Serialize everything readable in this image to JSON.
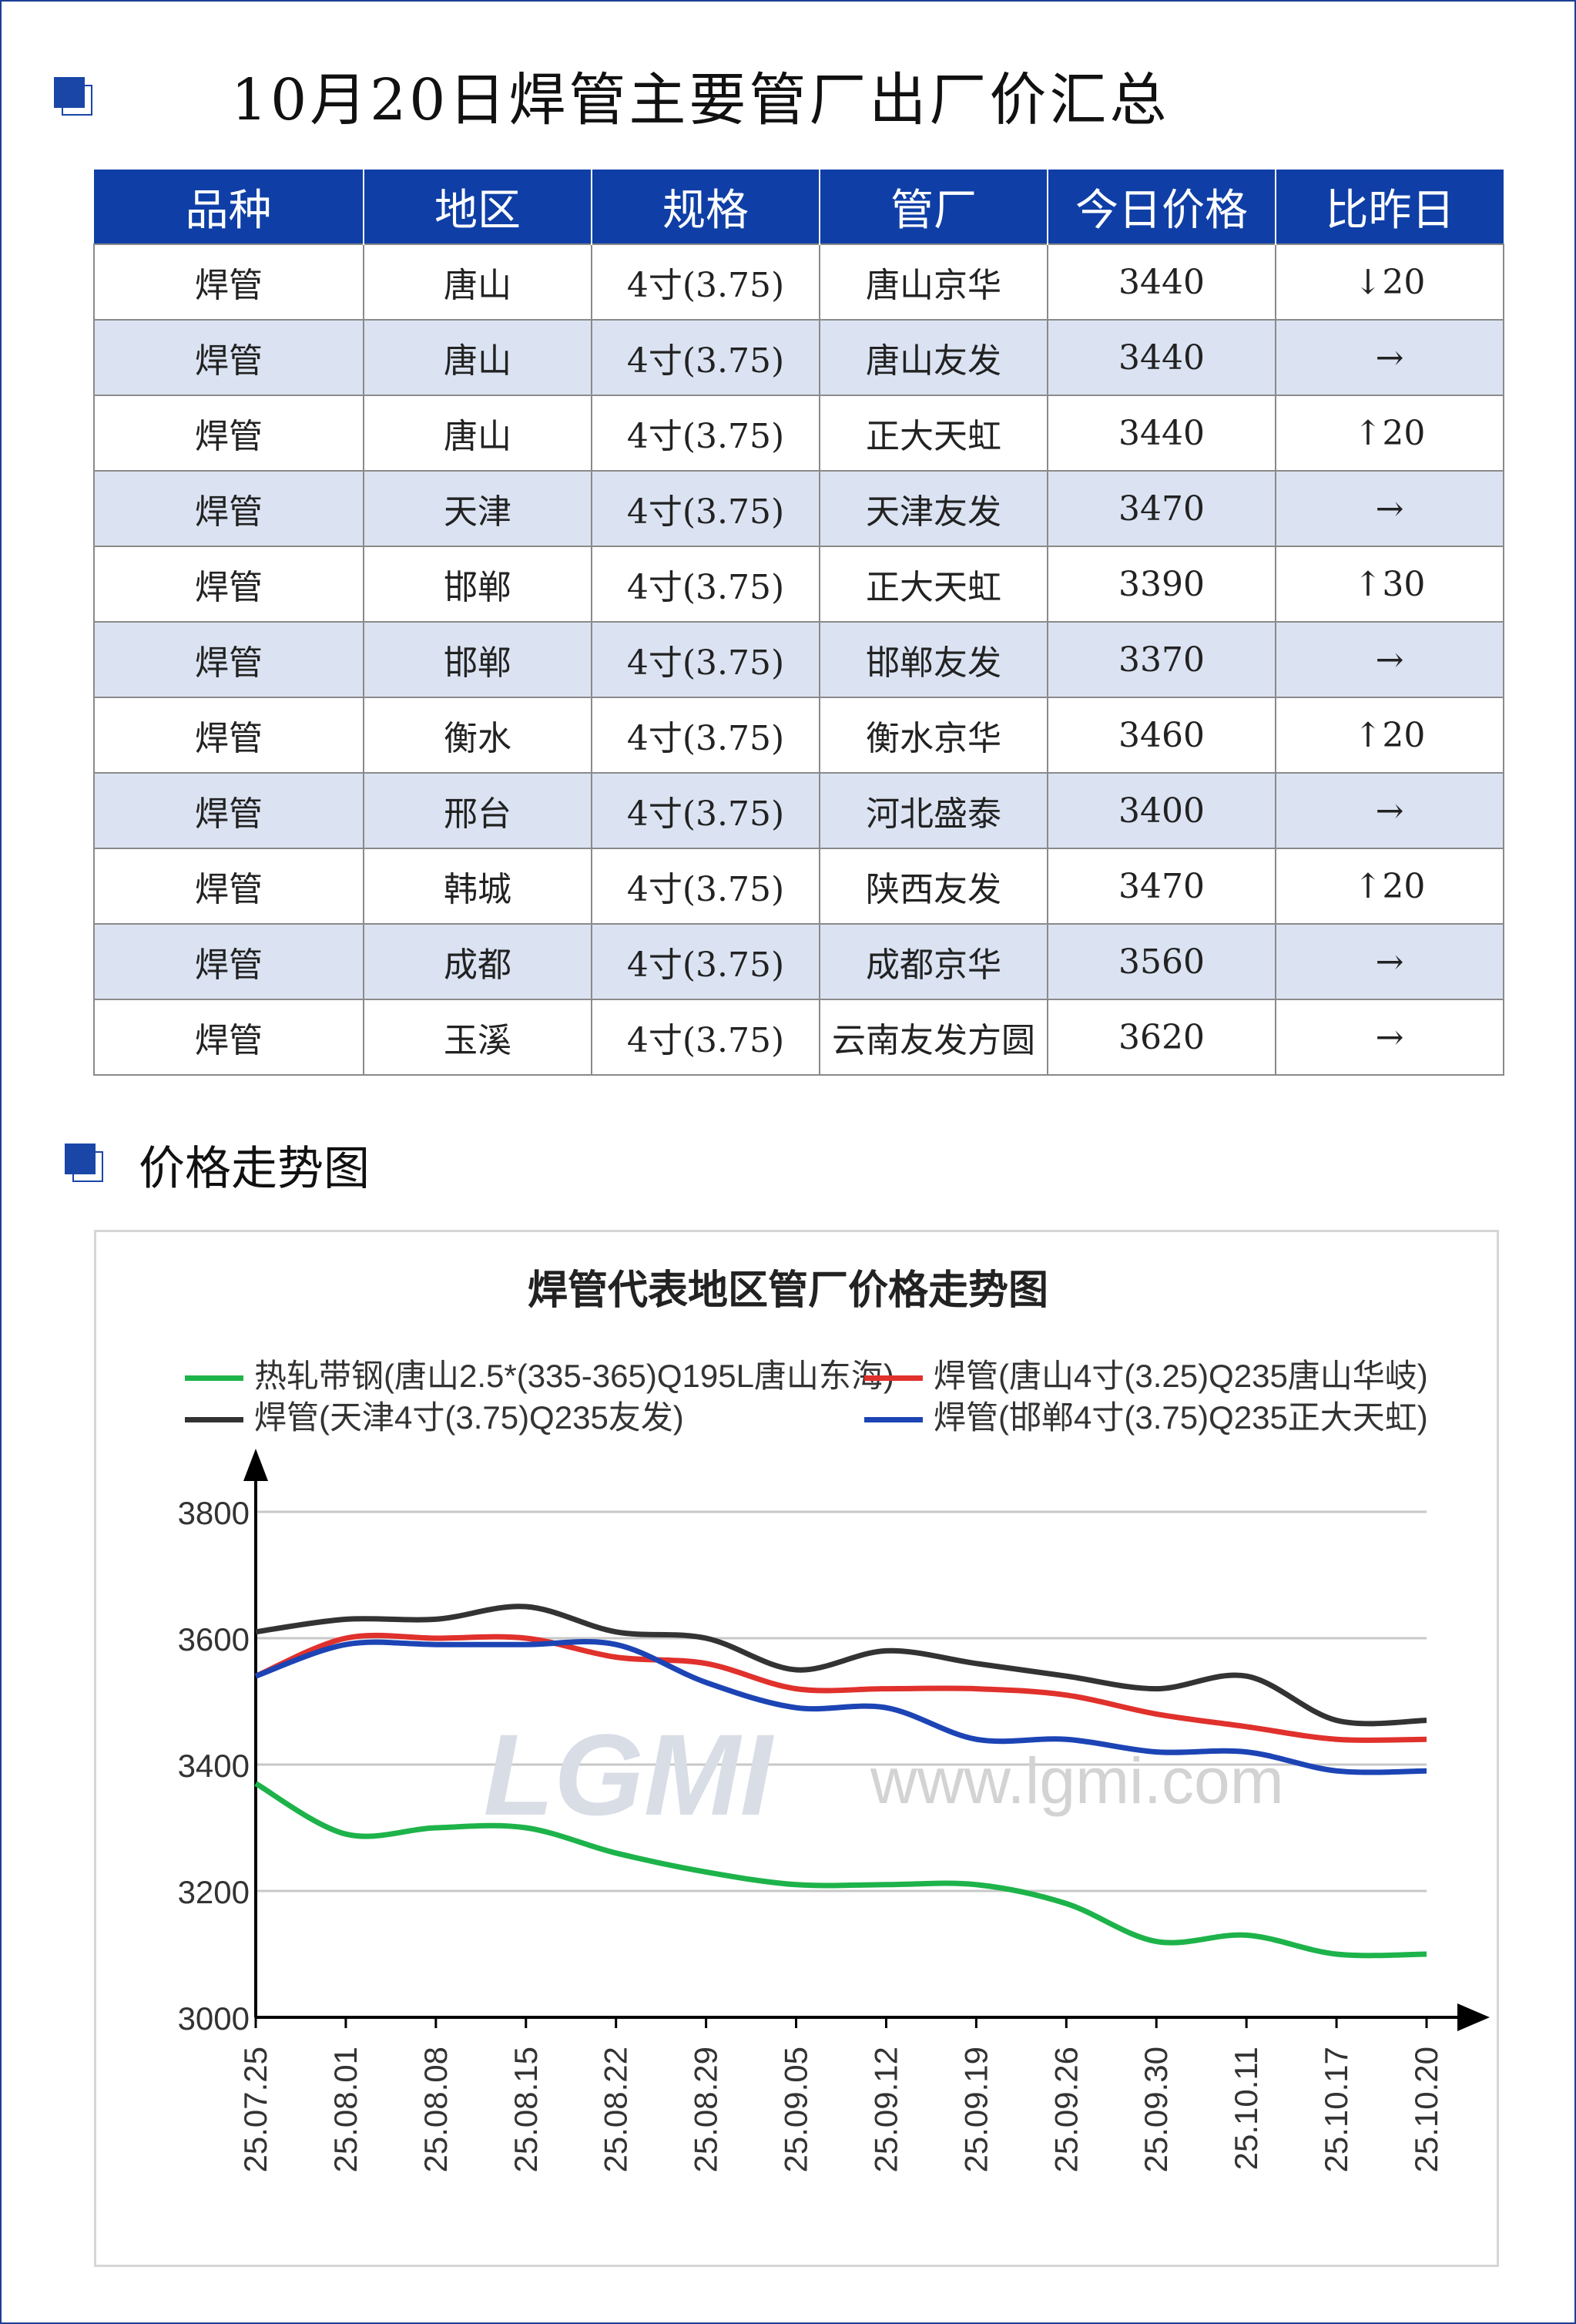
{
  "header": {
    "title": "10月20日焊管主要管厂出厂价汇总"
  },
  "table": {
    "columns": [
      "品种",
      "地区",
      "规格",
      "管厂",
      "今日价格",
      "比昨日"
    ],
    "rows": [
      {
        "variety": "焊管",
        "region": "唐山",
        "spec": "4寸(3.75)",
        "mill": "唐山京华",
        "price": "3440",
        "change": "↓20",
        "dir": "down"
      },
      {
        "variety": "焊管",
        "region": "唐山",
        "spec": "4寸(3.75)",
        "mill": "唐山友发",
        "price": "3440",
        "change": "→",
        "dir": "flat"
      },
      {
        "variety": "焊管",
        "region": "唐山",
        "spec": "4寸(3.75)",
        "mill": "正大天虹",
        "price": "3440",
        "change": "↑20",
        "dir": "up"
      },
      {
        "variety": "焊管",
        "region": "天津",
        "spec": "4寸(3.75)",
        "mill": "天津友发",
        "price": "3470",
        "change": "→",
        "dir": "flat"
      },
      {
        "variety": "焊管",
        "region": "邯郸",
        "spec": "4寸(3.75)",
        "mill": "正大天虹",
        "price": "3390",
        "change": "↑30",
        "dir": "up"
      },
      {
        "variety": "焊管",
        "region": "邯郸",
        "spec": "4寸(3.75)",
        "mill": "邯郸友发",
        "price": "3370",
        "change": "→",
        "dir": "flat"
      },
      {
        "variety": "焊管",
        "region": "衡水",
        "spec": "4寸(3.75)",
        "mill": "衡水京华",
        "price": "3460",
        "change": "↑20",
        "dir": "up"
      },
      {
        "variety": "焊管",
        "region": "邢台",
        "spec": "4寸(3.75)",
        "mill": "河北盛泰",
        "price": "3400",
        "change": "→",
        "dir": "flat"
      },
      {
        "variety": "焊管",
        "region": "韩城",
        "spec": "4寸(3.75)",
        "mill": "陕西友发",
        "price": "3470",
        "change": "↑20",
        "dir": "up"
      },
      {
        "variety": "焊管",
        "region": "成都",
        "spec": "4寸(3.75)",
        "mill": "成都京华",
        "price": "3560",
        "change": "→",
        "dir": "flat"
      },
      {
        "variety": "焊管",
        "region": "玉溪",
        "spec": "4寸(3.75)",
        "mill": "云南友发方圆",
        "price": "3620",
        "change": "→",
        "dir": "flat"
      }
    ]
  },
  "section": {
    "trend_title": "价格走势图"
  },
  "watermark": {
    "logo": "LGMI",
    "url": "www.lgmi.com"
  },
  "colors": {
    "header_bg": "#0f3fa6",
    "alt_row": "#dbe3f2",
    "up": "#e0141a",
    "down": "#1ea845",
    "series_green": "#1db34a",
    "series_red": "#e0312c",
    "series_black": "#333333",
    "series_blue": "#1c44b5"
  },
  "chart_data": {
    "type": "line",
    "title": "焊管代表地区管厂价格走势图",
    "xlabel": "",
    "ylabel": "",
    "ylim": [
      3000,
      3800
    ],
    "yticks": [
      3000,
      3200,
      3400,
      3600,
      3800
    ],
    "grid": true,
    "legend_position": "top",
    "x": [
      "25.07.25",
      "25.08.01",
      "25.08.08",
      "25.08.15",
      "25.08.22",
      "25.08.29",
      "25.09.05",
      "25.09.12",
      "25.09.19",
      "25.09.26",
      "25.09.30",
      "25.10.11",
      "25.10.17",
      "25.10.20"
    ],
    "series": [
      {
        "name": "热轧带钢(唐山2.5*(335-365)Q195L唐山东海)",
        "color": "#1db34a",
        "values": [
          3370,
          3290,
          3300,
          3300,
          3260,
          3230,
          3210,
          3210,
          3210,
          3180,
          3120,
          3130,
          3100,
          3100
        ]
      },
      {
        "name": "焊管(唐山4寸(3.25)Q235唐山华岐)",
        "color": "#e0312c",
        "values": [
          3540,
          3600,
          3600,
          3600,
          3570,
          3560,
          3520,
          3520,
          3520,
          3510,
          3480,
          3460,
          3440,
          3440
        ]
      },
      {
        "name": "焊管(天津4寸(3.75)Q235友发)",
        "color": "#333333",
        "values": [
          3610,
          3630,
          3630,
          3650,
          3610,
          3600,
          3550,
          3580,
          3560,
          3540,
          3520,
          3540,
          3470,
          3470
        ]
      },
      {
        "name": "焊管(邯郸4寸(3.75)Q235正大天虹)",
        "color": "#1c44b5",
        "values": [
          3540,
          3590,
          3590,
          3590,
          3590,
          3530,
          3490,
          3490,
          3440,
          3440,
          3420,
          3420,
          3390,
          3390
        ]
      }
    ]
  }
}
